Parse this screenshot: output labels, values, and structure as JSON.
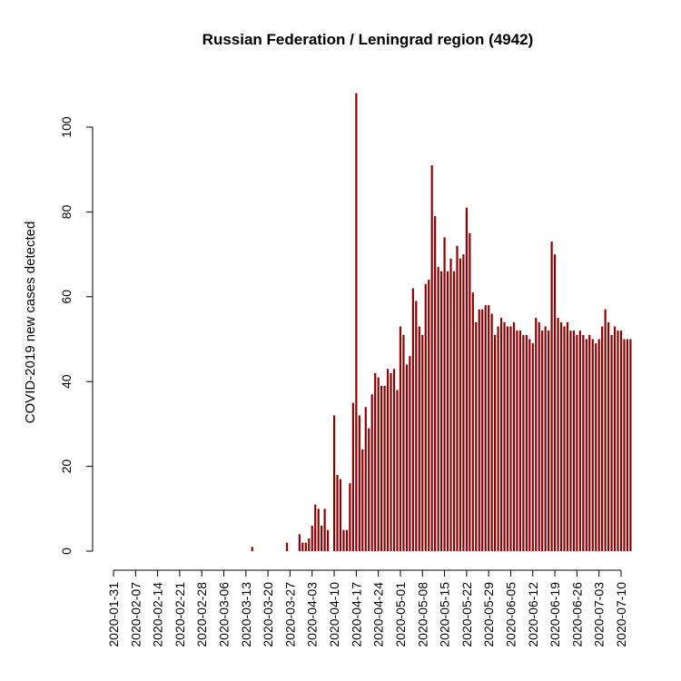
{
  "chart_data": {
    "type": "bar",
    "title": "Russian Federation / Leningrad region (4942)",
    "xlabel": "",
    "ylabel": "COVID-2019 new cases detected",
    "ylim": [
      0,
      105
    ],
    "y_ticks": [
      0,
      20,
      40,
      60,
      80,
      100
    ],
    "x_tick_labels": [
      "2020-01-31",
      "2020-02-07",
      "2020-02-14",
      "2020-02-21",
      "2020-02-28",
      "2020-03-06",
      "2020-03-13",
      "2020-03-20",
      "2020-03-27",
      "2020-04-03",
      "2020-04-10",
      "2020-04-17",
      "2020-04-24",
      "2020-05-01",
      "2020-05-08",
      "2020-05-15",
      "2020-05-22",
      "2020-05-29",
      "2020-06-05",
      "2020-06-12",
      "2020-06-19",
      "2020-06-26",
      "2020-07-03",
      "2020-07-10"
    ],
    "bar_color": "#8b0000",
    "grid": false,
    "legend": "none",
    "start_date": "2020-01-31",
    "end_date": "2020-07-10",
    "values": [
      0,
      0,
      0,
      0,
      0,
      0,
      0,
      0,
      0,
      0,
      0,
      0,
      0,
      0,
      0,
      0,
      0,
      0,
      0,
      0,
      0,
      0,
      0,
      0,
      0,
      0,
      0,
      0,
      0,
      0,
      0,
      0,
      0,
      0,
      0,
      0,
      0,
      0,
      0,
      0,
      0,
      0,
      0,
      0,
      1,
      0,
      0,
      0,
      0,
      0,
      0,
      0,
      0,
      0,
      0,
      2,
      0,
      0,
      0,
      4,
      2,
      2,
      3,
      6,
      11,
      10,
      6,
      10,
      5,
      0,
      32,
      18,
      17,
      5,
      5,
      16,
      35,
      108,
      32,
      24,
      34,
      29,
      37,
      42,
      41,
      39,
      39,
      43,
      42,
      43,
      38,
      53,
      51,
      44,
      46,
      62,
      59,
      53,
      51,
      63,
      64,
      91,
      79,
      67,
      66,
      74,
      66,
      69,
      66,
      72,
      69,
      70,
      81,
      75,
      61,
      54,
      57,
      57,
      58,
      58,
      56,
      51,
      53,
      55,
      54,
      53,
      53,
      54,
      52,
      52,
      51,
      51,
      50,
      49,
      55,
      54,
      52,
      53,
      52,
      73,
      70,
      55,
      54,
      53,
      54,
      52,
      52,
      51,
      52,
      51,
      50,
      51,
      50,
      49,
      50,
      53,
      57,
      54,
      51,
      53,
      52,
      52,
      50,
      50,
      50
    ]
  }
}
